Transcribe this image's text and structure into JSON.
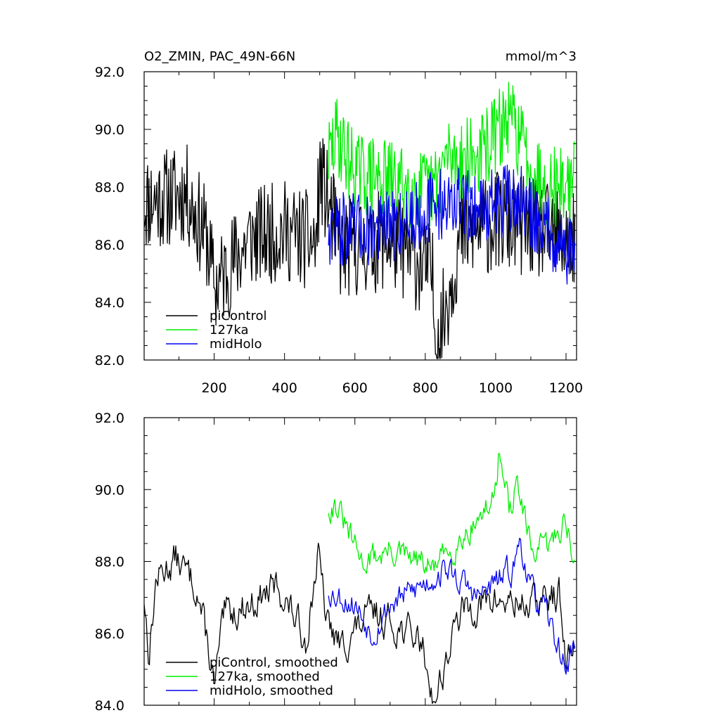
{
  "chart_data": [
    {
      "type": "line",
      "title": "O2_ZMIN, PAC_49N-66N",
      "units": "mmol/m^3",
      "xlim": [
        1,
        1230
      ],
      "ylim": [
        82.0,
        92.0
      ],
      "xticks": [
        200,
        400,
        600,
        800,
        1000,
        1200
      ],
      "xtick_labels": [
        "200",
        "400",
        "600",
        "800",
        "1000",
        "1200"
      ],
      "yticks": [
        82.0,
        84.0,
        86.0,
        88.0,
        90.0,
        92.0
      ],
      "ytick_labels": [
        "82.0",
        "84.0",
        "86.0",
        "88.0",
        "90.0",
        "92.0"
      ],
      "legend_position": "bottom-left",
      "series": [
        {
          "name": "piControl",
          "color": "#000000",
          "x_start": 1,
          "x_end": 1225,
          "mean": 86.8,
          "amp": 1.1,
          "seed": 11,
          "keypoints": [
            [
              1,
              87.5
            ],
            [
              50,
              87.6
            ],
            [
              120,
              87.8
            ],
            [
              180,
              86.2
            ],
            [
              200,
              84.5
            ],
            [
              300,
              86.2
            ],
            [
              400,
              86.5
            ],
            [
              490,
              86.0
            ],
            [
              500,
              88.5
            ],
            [
              560,
              85.8
            ],
            [
              700,
              86.2
            ],
            [
              820,
              85.0
            ],
            [
              830,
              82.2
            ],
            [
              900,
              86.3
            ],
            [
              1000,
              86.8
            ],
            [
              1100,
              86.6
            ],
            [
              1225,
              86.0
            ]
          ]
        },
        {
          "name": "127ka",
          "color": "#00ee00",
          "x_start": 525,
          "x_end": 1225,
          "mean": 88.4,
          "amp": 0.9,
          "seed": 29,
          "keypoints": [
            [
              525,
              89.0
            ],
            [
              550,
              89.8
            ],
            [
              600,
              88.5
            ],
            [
              700,
              88.2
            ],
            [
              820,
              87.8
            ],
            [
              860,
              89.0
            ],
            [
              950,
              89.0
            ],
            [
              1010,
              90.0
            ],
            [
              1040,
              90.5
            ],
            [
              1100,
              88.8
            ],
            [
              1150,
              88.0
            ],
            [
              1225,
              88.2
            ]
          ]
        },
        {
          "name": "midHolo",
          "color": "#0000ee",
          "x_start": 525,
          "x_end": 1225,
          "mean": 86.9,
          "amp": 0.8,
          "seed": 47,
          "keypoints": [
            [
              525,
              86.6
            ],
            [
              600,
              86.5
            ],
            [
              700,
              86.6
            ],
            [
              800,
              87.2
            ],
            [
              860,
              87.5
            ],
            [
              950,
              87.3
            ],
            [
              1060,
              87.6
            ],
            [
              1150,
              86.5
            ],
            [
              1225,
              85.6
            ]
          ]
        }
      ]
    },
    {
      "type": "line",
      "title": "",
      "xlim": [
        1,
        1230
      ],
      "ylim": [
        84.0,
        92.0
      ],
      "xticks": [
        200,
        400,
        600,
        800,
        1000,
        1200
      ],
      "yticks": [
        84.0,
        86.0,
        88.0,
        90.0,
        92.0
      ],
      "ytick_labels": [
        "84.0",
        "86.0",
        "88.0",
        "90.0",
        "92.0"
      ],
      "legend_position": "bottom-left",
      "series": [
        {
          "name": "piControl, smoothed",
          "color": "#000000",
          "x_start": 1,
          "x_end": 1225,
          "mean": 86.9,
          "amp": 0.55,
          "seed": 13,
          "keypoints": [
            [
              1,
              87.0
            ],
            [
              15,
              85.4
            ],
            [
              35,
              87.5
            ],
            [
              90,
              88.1
            ],
            [
              150,
              87.3
            ],
            [
              185,
              85.5
            ],
            [
              200,
              84.6
            ],
            [
              230,
              86.5
            ],
            [
              300,
              86.8
            ],
            [
              380,
              87.3
            ],
            [
              420,
              86.6
            ],
            [
              460,
              85.8
            ],
            [
              495,
              88.2
            ],
            [
              520,
              86.3
            ],
            [
              560,
              85.6
            ],
            [
              650,
              86.6
            ],
            [
              700,
              86.3
            ],
            [
              790,
              85.8
            ],
            [
              825,
              84.1
            ],
            [
              900,
              86.6
            ],
            [
              1000,
              86.9
            ],
            [
              1100,
              86.8
            ],
            [
              1180,
              87.1
            ],
            [
              1200,
              85.0
            ],
            [
              1225,
              85.8
            ]
          ]
        },
        {
          "name": "127ka, smoothed",
          "color": "#00ee00",
          "x_start": 525,
          "x_end": 1225,
          "mean": 88.4,
          "amp": 0.45,
          "seed": 31,
          "keypoints": [
            [
              525,
              89.5
            ],
            [
              545,
              89.6
            ],
            [
              580,
              88.8
            ],
            [
              620,
              88.0
            ],
            [
              700,
              88.3
            ],
            [
              820,
              87.8
            ],
            [
              880,
              88.4
            ],
            [
              950,
              89.2
            ],
            [
              990,
              89.6
            ],
            [
              1010,
              91.0
            ],
            [
              1040,
              89.4
            ],
            [
              1060,
              90.2
            ],
            [
              1100,
              88.3
            ],
            [
              1150,
              88.4
            ],
            [
              1200,
              89.2
            ],
            [
              1225,
              87.9
            ]
          ]
        },
        {
          "name": "midHolo, smoothed",
          "color": "#0000ee",
          "x_start": 525,
          "x_end": 1225,
          "mean": 87.0,
          "amp": 0.45,
          "seed": 53,
          "keypoints": [
            [
              525,
              87.2
            ],
            [
              600,
              86.8
            ],
            [
              650,
              86.0
            ],
            [
              700,
              86.8
            ],
            [
              800,
              87.4
            ],
            [
              860,
              87.8
            ],
            [
              950,
              87.0
            ],
            [
              1050,
              87.8
            ],
            [
              1070,
              88.6
            ],
            [
              1100,
              87.2
            ],
            [
              1150,
              86.4
            ],
            [
              1200,
              85.0
            ],
            [
              1225,
              85.8
            ]
          ]
        }
      ]
    }
  ]
}
